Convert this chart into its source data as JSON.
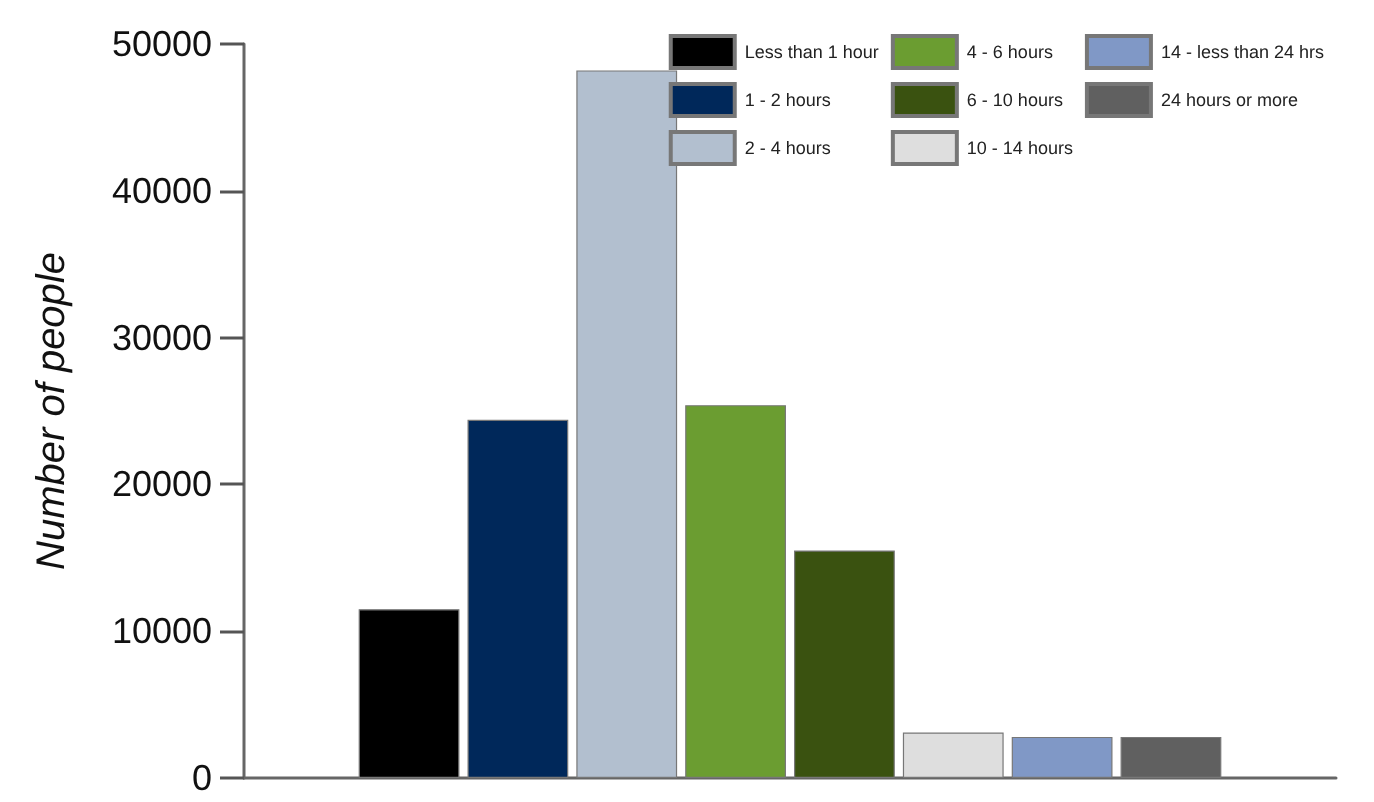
{
  "chart_data": {
    "type": "bar",
    "ylabel": "Number of people",
    "categories": [
      null
    ],
    "series": [
      {
        "name": "Less than 1 hour",
        "color": "#000000",
        "values": [
          11500
        ]
      },
      {
        "name": "1 - 2 hours",
        "color": "#00285a",
        "values": [
          24400
        ]
      },
      {
        "name": "2 - 4 hours",
        "color": "#b2bfcf",
        "values": [
          48200
        ]
      },
      {
        "name": "4 - 6 hours",
        "color": "#6b9d31",
        "values": [
          25400
        ]
      },
      {
        "name": "6 - 10 hours",
        "color": "#3a5210",
        "values": [
          15500
        ]
      },
      {
        "name": "10 - 14 hours",
        "color": "#dedede",
        "values": [
          3100
        ]
      },
      {
        "name": "14 - less than 24 hrs",
        "color": "#8098c6",
        "values": [
          2800
        ]
      },
      {
        "name": "24 hours or more",
        "color": "#606060",
        "values": [
          2800
        ]
      }
    ],
    "ylim": [
      0,
      50000
    ],
    "yticks": [
      0,
      10000,
      20000,
      30000,
      40000,
      50000
    ],
    "grid": false,
    "legend": "top right"
  }
}
